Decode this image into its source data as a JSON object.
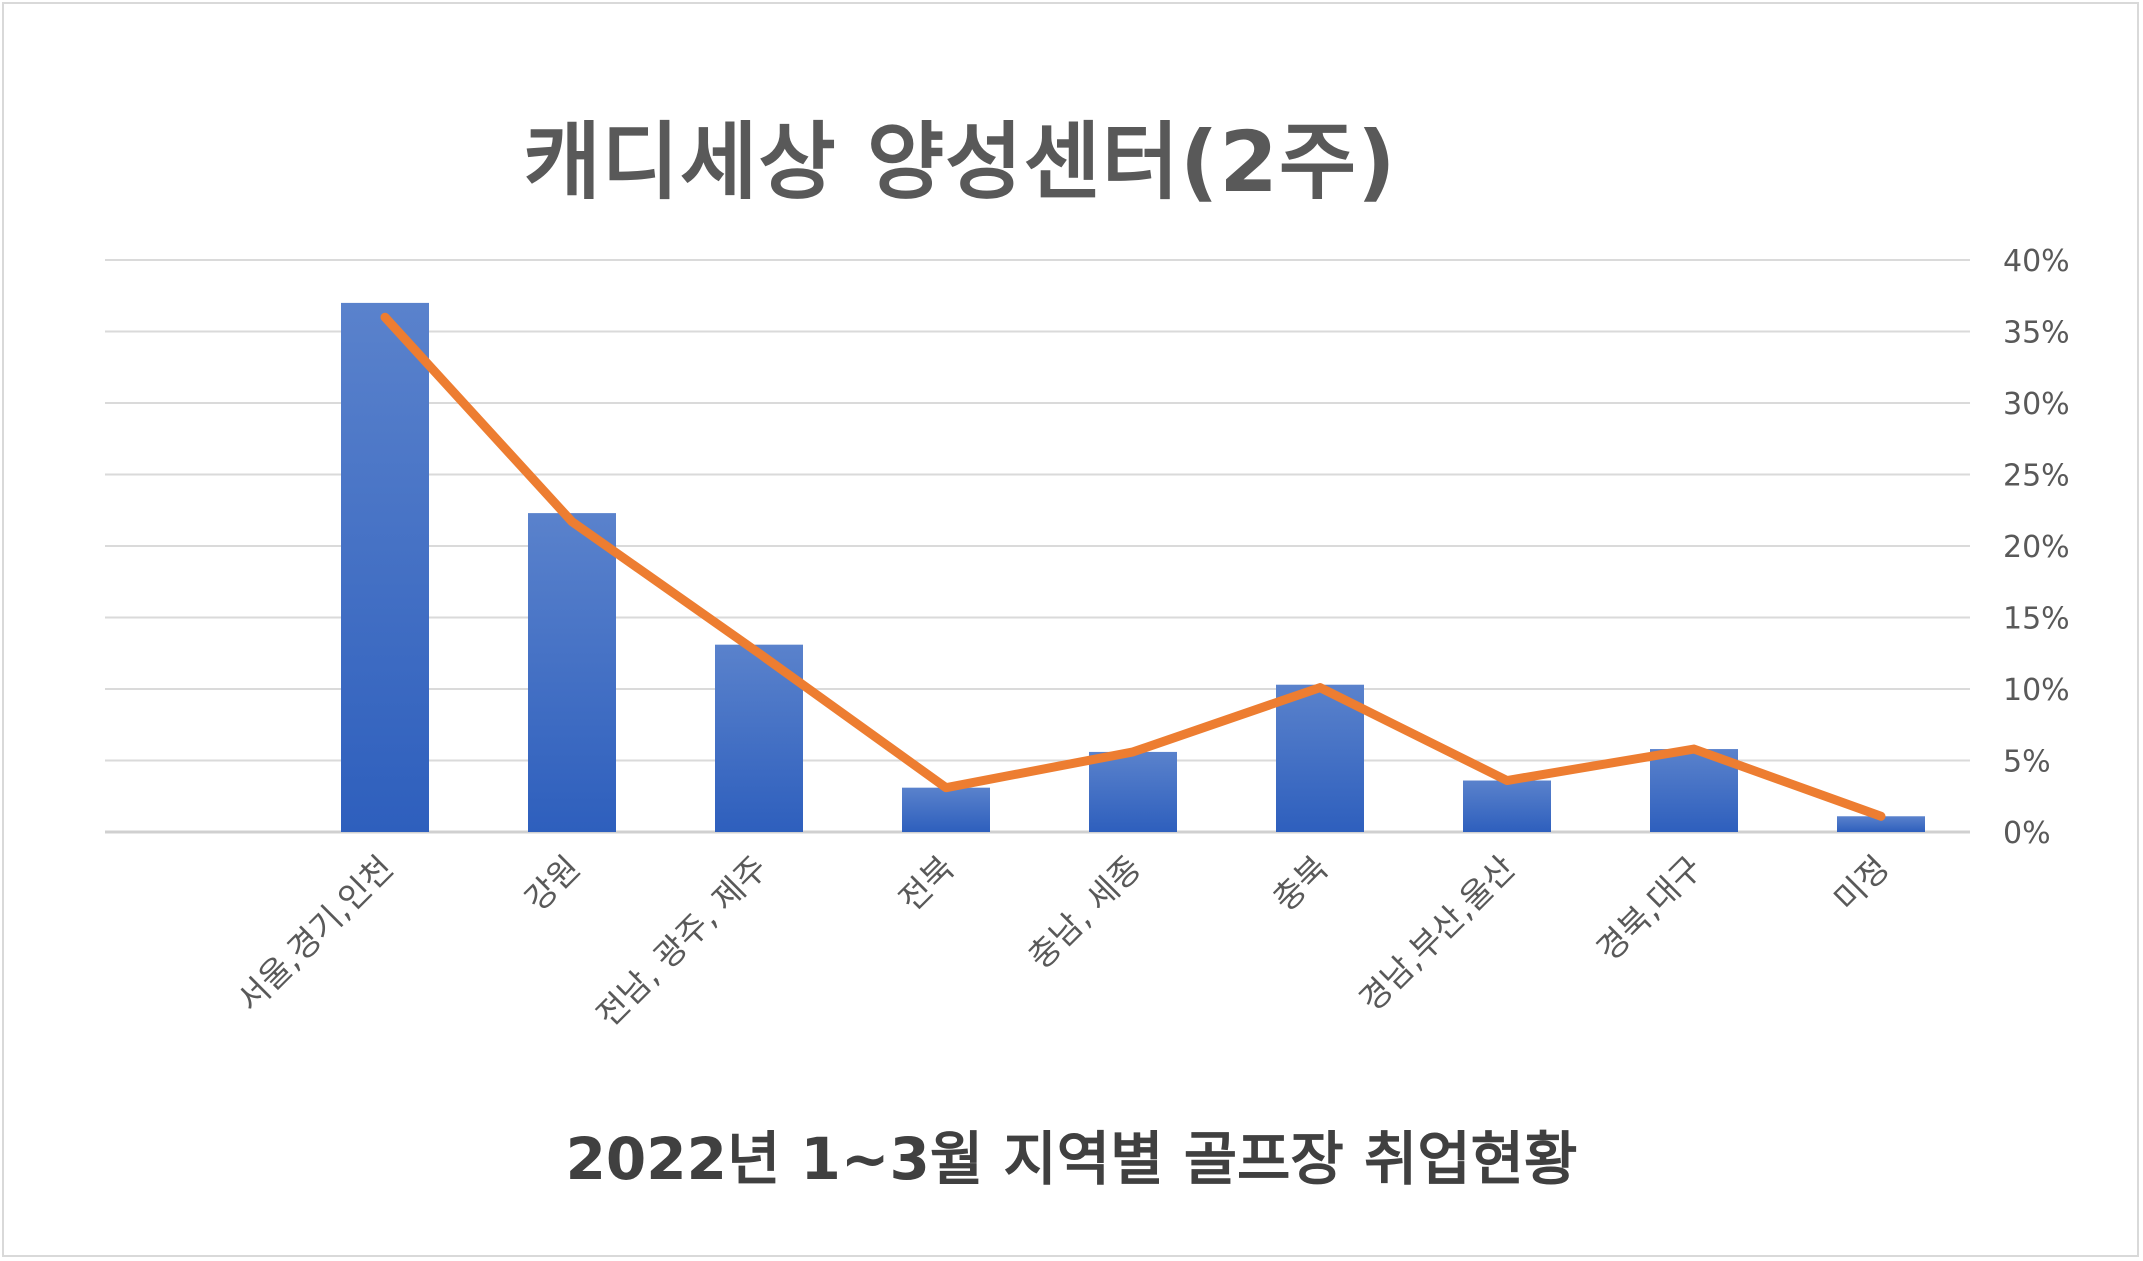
{
  "chart_data": {
    "type": "bar",
    "title": "캐디세상 양성센터(2주)",
    "subtitle": "2022년 1~3월 지역별 골프장 취업현황",
    "categories": [
      "서울,경기,인천",
      "강원",
      "전남, 광주, 제주",
      "전북",
      "충남, 세종",
      "충북",
      "경남,부산,울산",
      "경북,대구",
      "미정"
    ],
    "series": [
      {
        "type": "bar",
        "values": [
          37,
          22.3,
          13.1,
          3.1,
          5.6,
          10.3,
          3.6,
          5.8,
          1.1
        ],
        "color": "#4472c4"
      },
      {
        "type": "line",
        "values": [
          36,
          21.7,
          12.5,
          3.1,
          5.6,
          10.1,
          3.6,
          5.8,
          1.1
        ],
        "color": "#ed7d31"
      }
    ],
    "y_axis": {
      "position": "right",
      "min": 0,
      "max": 40,
      "step": 5,
      "tick_labels": [
        "0%",
        "5%",
        "10%",
        "15%",
        "20%",
        "25%",
        "30%",
        "35%",
        "40%"
      ]
    },
    "grid": true,
    "legend": "none"
  }
}
